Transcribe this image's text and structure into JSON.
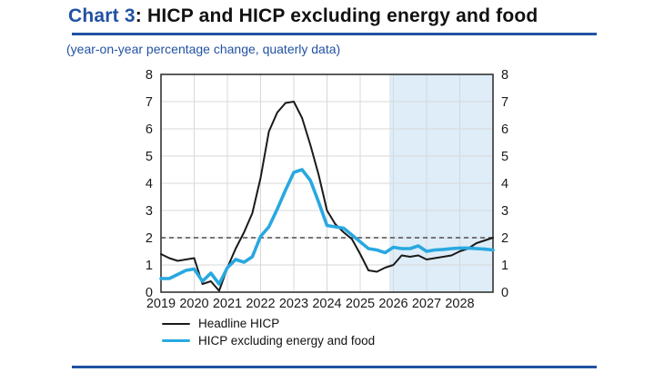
{
  "title": {
    "prefix": "Chart 3",
    "rest": ": HICP and HICP excluding energy and food"
  },
  "subtitle": "(year-on-year percentage change, quaterly data)",
  "colors": {
    "brand_blue": "#2152a3",
    "headline_line": "#1a1a1a",
    "core_line": "#29a8e0",
    "projection_shading": "#deedf8",
    "gridline": "#d8d8d8",
    "frame": "#333333",
    "dashed_reference": "#4d4d4d",
    "tick_text": "#1a1a1a"
  },
  "legend": {
    "items": [
      {
        "label": "Headline HICP"
      },
      {
        "label": "HICP excluding energy and food"
      }
    ]
  },
  "chart_data": {
    "type": "line",
    "title": "Chart 3: HICP and HICP excluding energy and food",
    "subtitle": "(year-on-year percentage change, quaterly data)",
    "xlabel": "",
    "ylabel": "",
    "xlim": [
      2019,
      2029
    ],
    "ylim": [
      0,
      8
    ],
    "x_tick_labels": [
      "2019",
      "2020",
      "2021",
      "2022",
      "2023",
      "2024",
      "2025",
      "2026",
      "2027",
      "2028"
    ],
    "x_tick_positions": [
      2019,
      2020,
      2021,
      2022,
      2023,
      2024,
      2025,
      2026,
      2027,
      2028
    ],
    "y_ticks": [
      0,
      1,
      2,
      3,
      4,
      5,
      6,
      7,
      8
    ],
    "y_axis_sides": [
      "left",
      "right"
    ],
    "grid": true,
    "dashed_reference_value": 2,
    "projection_shading": {
      "from": 2025.875,
      "to": 2029
    },
    "x_start": 2019.0,
    "x_step": 0.25,
    "frequency": "quarterly",
    "legend_position": "bottom-left",
    "series": [
      {
        "name": "Headline HICP",
        "color": "#1a1a1a",
        "stroke_width": 2,
        "values": [
          1.4,
          1.25,
          1.15,
          1.2,
          1.25,
          0.3,
          0.4,
          0.05,
          0.9,
          1.6,
          2.2,
          2.9,
          4.2,
          5.9,
          6.6,
          6.95,
          7.0,
          6.4,
          5.4,
          4.3,
          3.0,
          2.5,
          2.2,
          1.95,
          1.4,
          0.8,
          0.75,
          0.9,
          1.0,
          1.35,
          1.3,
          1.35,
          1.2,
          1.25,
          1.3,
          1.35,
          1.5,
          1.6,
          1.8,
          1.9,
          2.0
        ]
      },
      {
        "name": "HICP excluding energy and food",
        "color": "#29a8e0",
        "stroke_width": 3.6,
        "values": [
          0.5,
          0.5,
          0.65,
          0.8,
          0.85,
          0.4,
          0.7,
          0.3,
          0.9,
          1.2,
          1.1,
          1.3,
          2.05,
          2.4,
          3.05,
          3.75,
          4.4,
          4.5,
          4.1,
          3.3,
          2.45,
          2.4,
          2.35,
          2.1,
          1.85,
          1.6,
          1.55,
          1.45,
          1.65,
          1.6,
          1.6,
          1.7,
          1.5,
          1.55,
          1.57,
          1.6,
          1.62,
          1.62,
          1.6,
          1.58,
          1.55
        ]
      }
    ]
  }
}
